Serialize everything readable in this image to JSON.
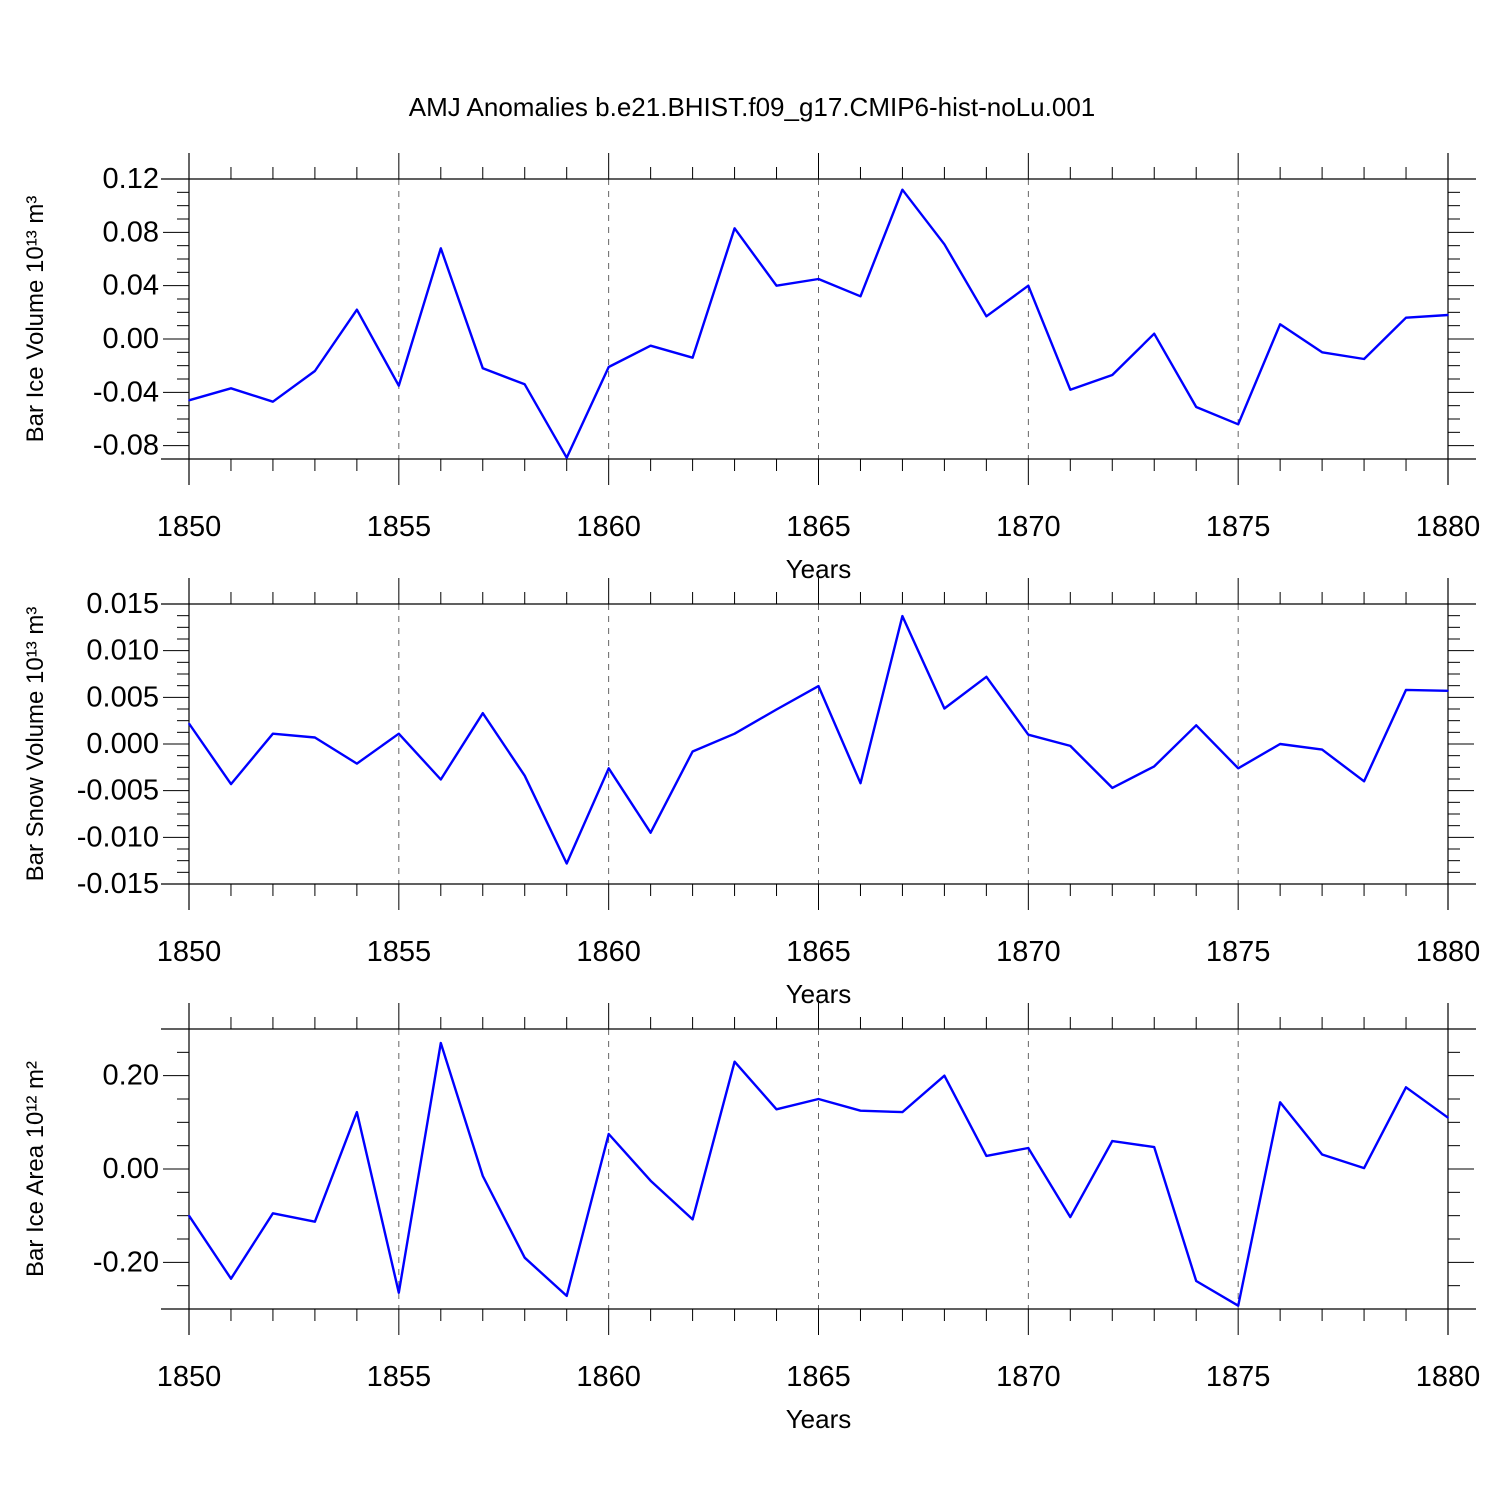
{
  "title": "AMJ Anomalies b.e21.BHIST.f09_g17.CMIP6-hist-noLu.001",
  "colors": {
    "series": "#0000ff",
    "axes": "#000000",
    "grid": "#555555"
  },
  "chart_data": [
    {
      "type": "line",
      "ylabel": "Bar Ice Volume 10¹³ m³",
      "xlabel": "Years",
      "xlim": [
        1850,
        1880
      ],
      "ylim": [
        -0.09,
        0.12
      ],
      "x_ticks": [
        1850,
        1855,
        1860,
        1865,
        1870,
        1875,
        1880
      ],
      "y_ticks": [
        "-0.08",
        "-0.04",
        "0.00",
        "0.04",
        "0.08",
        "0.12"
      ],
      "grid": "vertical dashed at major x ticks",
      "x": [
        1850,
        1851,
        1852,
        1853,
        1854,
        1855,
        1856,
        1857,
        1858,
        1859,
        1860,
        1861,
        1862,
        1863,
        1864,
        1865,
        1866,
        1867,
        1868,
        1869,
        1870,
        1871,
        1872,
        1873,
        1874,
        1875,
        1876,
        1877,
        1878,
        1879,
        1880
      ],
      "values": [
        -0.046,
        -0.037,
        -0.047,
        -0.024,
        0.022,
        -0.035,
        0.068,
        -0.022,
        -0.034,
        -0.089,
        -0.021,
        -0.005,
        -0.014,
        0.083,
        0.04,
        0.045,
        0.032,
        0.112,
        0.071,
        0.017,
        0.04,
        -0.038,
        -0.027,
        0.004,
        -0.051,
        -0.064,
        0.011,
        -0.01,
        -0.015,
        0.016,
        0.018
      ]
    },
    {
      "type": "line",
      "ylabel": "Bar Snow Volume 10¹³ m³",
      "xlabel": "Years",
      "xlim": [
        1850,
        1880
      ],
      "ylim": [
        -0.015,
        0.015
      ],
      "x_ticks": [
        1850,
        1855,
        1860,
        1865,
        1870,
        1875,
        1880
      ],
      "y_ticks": [
        "-0.015",
        "-0.010",
        "-0.005",
        "0.000",
        "0.005",
        "0.010",
        "0.015"
      ],
      "grid": "vertical dashed at major x ticks",
      "x": [
        1850,
        1851,
        1852,
        1853,
        1854,
        1855,
        1856,
        1857,
        1858,
        1859,
        1860,
        1861,
        1862,
        1863,
        1864,
        1865,
        1866,
        1867,
        1868,
        1869,
        1870,
        1871,
        1872,
        1873,
        1874,
        1875,
        1876,
        1877,
        1878,
        1879,
        1880
      ],
      "values": [
        0.0022,
        -0.0043,
        0.0011,
        0.0007,
        -0.0021,
        0.0011,
        -0.0038,
        0.0033,
        -0.0034,
        -0.0128,
        -0.0026,
        -0.0095,
        -0.0008,
        0.0011,
        0.0037,
        0.0062,
        -0.0042,
        0.0137,
        0.0038,
        0.0072,
        0.001,
        -0.0002,
        -0.0047,
        -0.0024,
        0.002,
        -0.0026,
        0.0,
        -0.0006,
        -0.004,
        0.0058,
        0.0057
      ]
    },
    {
      "type": "line",
      "ylabel": "Bar Ice Area 10¹² m²",
      "xlabel": "Years",
      "xlim": [
        1850,
        1880
      ],
      "ylim": [
        -0.3,
        0.3
      ],
      "x_ticks": [
        1850,
        1855,
        1860,
        1865,
        1870,
        1875,
        1880
      ],
      "y_ticks": [
        "-0.20",
        "0.00",
        "0.20"
      ],
      "grid": "vertical dashed at major x ticks",
      "x": [
        1850,
        1851,
        1852,
        1853,
        1854,
        1855,
        1856,
        1857,
        1858,
        1859,
        1860,
        1861,
        1862,
        1863,
        1864,
        1865,
        1866,
        1867,
        1868,
        1869,
        1870,
        1871,
        1872,
        1873,
        1874,
        1875,
        1876,
        1877,
        1878,
        1879,
        1880
      ],
      "values": [
        -0.1,
        -0.235,
        -0.095,
        -0.113,
        0.122,
        -0.265,
        0.27,
        -0.015,
        -0.19,
        -0.272,
        0.075,
        -0.025,
        -0.108,
        0.23,
        0.128,
        0.15,
        0.125,
        0.122,
        0.2,
        0.028,
        0.045,
        -0.103,
        0.06,
        0.047,
        -0.24,
        -0.293,
        0.143,
        0.031,
        0.002,
        0.175,
        0.11
      ]
    }
  ]
}
